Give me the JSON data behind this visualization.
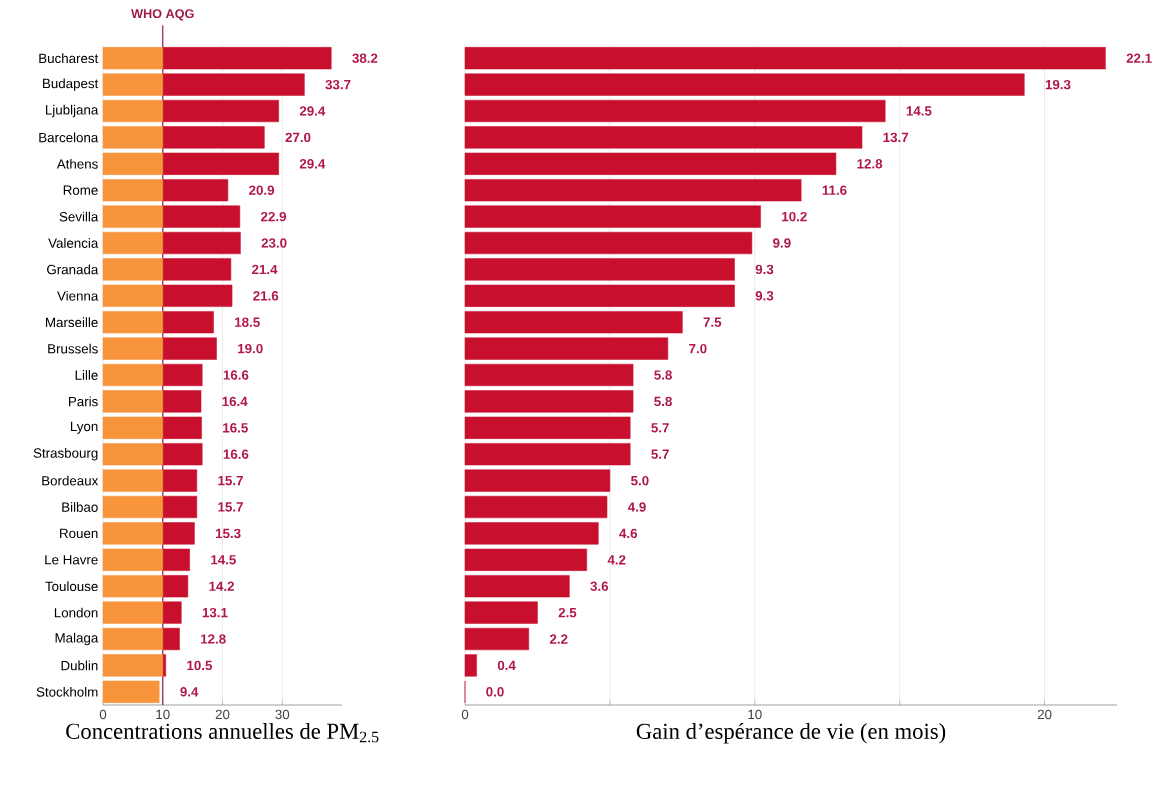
{
  "chart_data": [
    {
      "type": "bar",
      "orientation": "horizontal",
      "stacked": true,
      "xlabel": "Concentrations annuelles de PM$_{2.5}$",
      "categories": [
        "Bucharest",
        "Budapest",
        "Ljubljana",
        "Barcelona",
        "Athens",
        "Rome",
        "Sevilla",
        "Valencia",
        "Granada",
        "Vienna",
        "Marseille",
        "Brussels",
        "Lille",
        "Paris",
        "Lyon",
        "Strasbourg",
        "Bordeaux",
        "Bilbao",
        "Rouen",
        "Le Havre",
        "Toulouse",
        "London",
        "Malaga",
        "Dublin",
        "Stockholm"
      ],
      "series": [
        {
          "color": "#f7943c",
          "values": [
            10,
            10,
            10,
            10,
            10,
            10,
            10,
            10,
            10,
            10,
            10,
            10,
            10,
            10,
            10,
            10,
            10,
            10,
            10,
            10,
            10,
            10,
            10,
            10,
            9.4
          ]
        },
        {
          "color": "#c8102e",
          "values": [
            28.2,
            23.7,
            19.4,
            17.0,
            19.4,
            10.9,
            12.9,
            13.0,
            11.4,
            11.6,
            8.5,
            9.0,
            6.6,
            6.4,
            6.5,
            6.6,
            5.7,
            5.7,
            5.3,
            4.5,
            4.2,
            3.1,
            2.8,
            0.5,
            0
          ]
        }
      ],
      "totals": [
        "38.2",
        "33.7",
        "29.4",
        "27.0",
        "29.4",
        "20.9",
        "22.9",
        "23.0",
        "21.4",
        "21.6",
        "18.5",
        "19.0",
        "16.6",
        "16.4",
        "16.5",
        "16.6",
        "15.7",
        "15.7",
        "15.3",
        "14.5",
        "14.2",
        "13.1",
        "12.8",
        "10.5",
        "9.4"
      ],
      "xlim": [
        0,
        40
      ],
      "xticks": [
        0,
        10,
        20,
        30
      ],
      "grid": "x",
      "ref_lines": [
        {
          "axis": "x",
          "value": 10,
          "label": "WHO AQG",
          "color": "#9b1b4b"
        }
      ]
    },
    {
      "type": "bar",
      "orientation": "horizontal",
      "xlabel": "Gain d’espérance de vie (en mois)",
      "categories": [
        null,
        null,
        null,
        null,
        null,
        null,
        null,
        null,
        null,
        null,
        null,
        null,
        null,
        null,
        null,
        null,
        null,
        null,
        null,
        null,
        null,
        null,
        null,
        null,
        null
      ],
      "values": [
        22.1,
        19.3,
        14.5,
        13.7,
        12.8,
        11.6,
        10.2,
        9.9,
        9.3,
        9.3,
        7.5,
        7.0,
        5.8,
        5.8,
        5.7,
        5.7,
        5.0,
        4.9,
        4.6,
        4.2,
        3.6,
        2.5,
        2.2,
        0.4,
        0.0
      ],
      "value_labels": [
        "22.1",
        "19.3",
        "14.5",
        "13.7",
        "12.8",
        "11.6",
        "10.2",
        "9.9",
        "9.3",
        "9.3",
        "7.5",
        "7.0",
        "5.8",
        "5.8",
        "5.7",
        "5.7",
        "5.0",
        "4.9",
        "4.6",
        "4.2",
        "3.6",
        "2.5",
        "2.2",
        "0.4",
        "0.0"
      ],
      "color": "#c8102e",
      "xlim": [
        0,
        22.5
      ],
      "xticks": [
        0,
        {
          "value": 5,
          "label": null
        },
        10,
        {
          "value": 15,
          "label": null
        },
        20
      ],
      "grid": "x"
    }
  ]
}
